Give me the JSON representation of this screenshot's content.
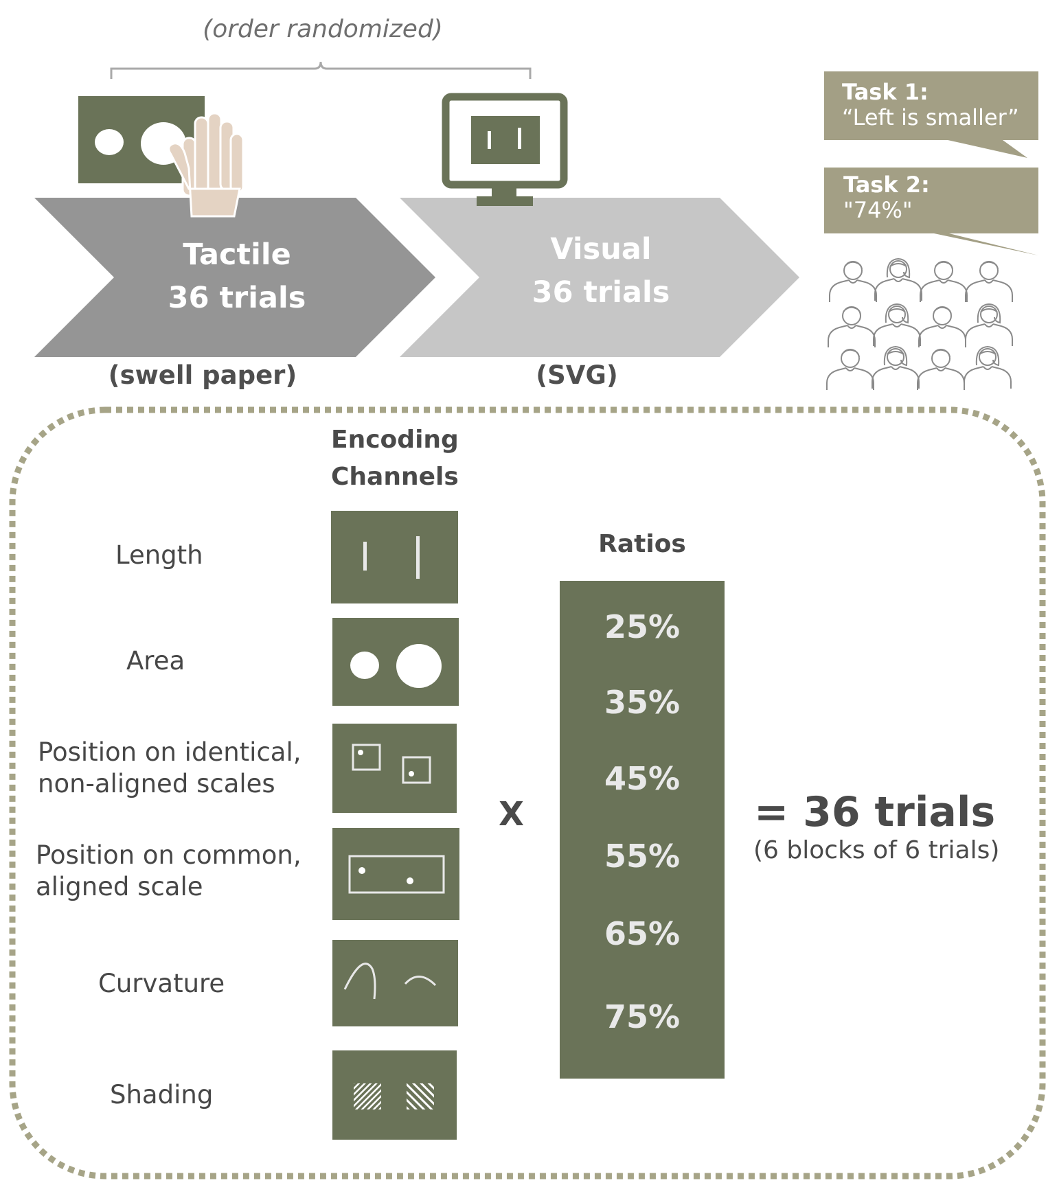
{
  "header": {
    "order_note": "(order randomized)"
  },
  "conditions": [
    {
      "name": "Tactile",
      "trials": "36 trials",
      "medium": "(swell paper)"
    },
    {
      "name": "Visual",
      "trials": "36 trials",
      "medium": "(SVG)"
    }
  ],
  "tasks": [
    {
      "title": "Task 1:",
      "answer": "“Left is smaller”"
    },
    {
      "title": "Task 2:",
      "answer": "\"74%\""
    }
  ],
  "encoding": {
    "heading_line1": "Encoding",
    "heading_line2": "Channels",
    "channels": [
      {
        "label": "Length",
        "icon": "length-icon"
      },
      {
        "label": "Area",
        "icon": "area-icon"
      },
      {
        "label_line1": "Position on identical,",
        "label_line2": "non-aligned scales",
        "icon": "position-nonaligned-icon"
      },
      {
        "label_line1": "Position on common,",
        "label_line2": "aligned scale",
        "icon": "position-aligned-icon"
      },
      {
        "label": "Curvature",
        "icon": "curvature-icon"
      },
      {
        "label": "Shading",
        "icon": "shading-icon"
      }
    ]
  },
  "ratios": {
    "heading": "Ratios",
    "values": [
      "25%",
      "35%",
      "45%",
      "55%",
      "65%",
      "75%"
    ]
  },
  "operator": "X",
  "result": {
    "main": "= 36 trials",
    "sub": "(6 blocks of 6 trials)"
  },
  "colors": {
    "olive": "#6a7358",
    "tactile_arrow": "#959595",
    "visual_arrow": "#c6c6c6",
    "bubble": "#a39f85",
    "dotted_border": "#a6a487",
    "hand": "#e4d3c3"
  }
}
